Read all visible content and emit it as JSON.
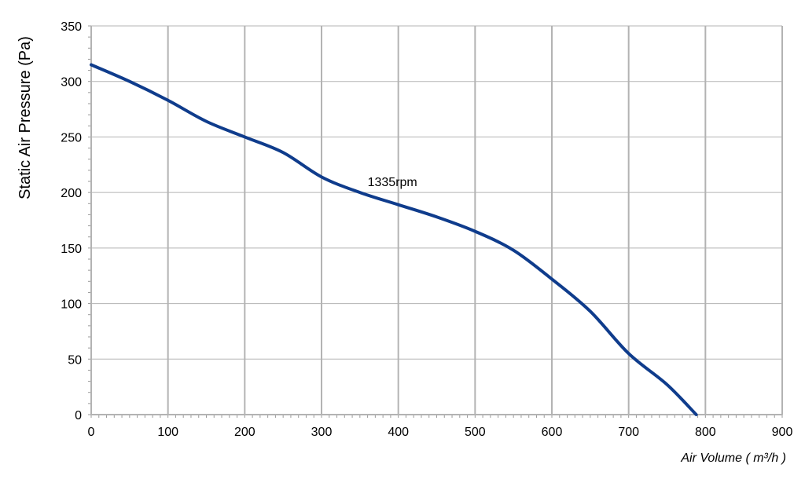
{
  "chart_data": {
    "type": "line",
    "title": "",
    "xlabel": "Air Volume ( m³/h )",
    "ylabel": "Static Air Pressure  (Pa)",
    "xlim": [
      0,
      900
    ],
    "ylim": [
      0,
      350
    ],
    "x_ticks": [
      0,
      100,
      200,
      300,
      400,
      500,
      600,
      700,
      800,
      900
    ],
    "y_ticks": [
      0,
      50,
      100,
      150,
      200,
      250,
      300,
      350
    ],
    "grid": true,
    "legend": "none",
    "series": [
      {
        "color": "#0f3c8c",
        "x": [
          0,
          50,
          100,
          150,
          200,
          250,
          300,
          350,
          400,
          450,
          500,
          550,
          600,
          650,
          700,
          750,
          788
        ],
        "y": [
          315,
          300,
          283,
          264,
          250,
          236,
          214,
          200,
          189,
          178,
          165,
          148,
          122,
          93,
          55,
          27,
          0
        ]
      }
    ],
    "annotations": [
      {
        "text": "1335rpm",
        "x": 360,
        "y": 210
      }
    ]
  }
}
